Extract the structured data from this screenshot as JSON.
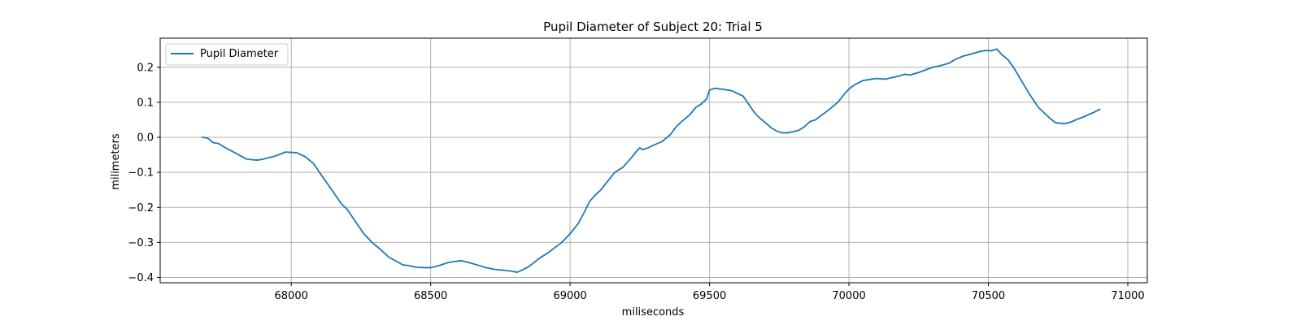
{
  "chart_data": {
    "type": "line",
    "title": "Pupil Diameter of Subject 20: Trial 5",
    "xlabel": "miliseconds",
    "ylabel": "milimeters",
    "xlim": [
      67530,
      71070
    ],
    "ylim": [
      -0.415,
      0.283
    ],
    "xticks": [
      68000,
      68500,
      69000,
      69500,
      70000,
      70500,
      71000
    ],
    "yticks": [
      -0.4,
      -0.3,
      -0.2,
      -0.1,
      0.0,
      0.1,
      0.2
    ],
    "ytick_labels": [
      "−0.4",
      "−0.3",
      "−0.2",
      "−0.1",
      "0.0",
      "0.1",
      "0.2"
    ],
    "grid": true,
    "legend_position": "top-left",
    "colors": {
      "series": "#1f77b4",
      "grid": "#b0b0b0"
    },
    "series": [
      {
        "name": "Pupil Diameter",
        "x": [
          67680,
          67700,
          67720,
          67740,
          67760,
          67800,
          67840,
          67860,
          67880,
          67900,
          67920,
          67940,
          67960,
          67980,
          68000,
          68020,
          68050,
          68080,
          68110,
          68150,
          68180,
          68200,
          68230,
          68260,
          68290,
          68320,
          68350,
          68380,
          68400,
          68420,
          68450,
          68480,
          68500,
          68530,
          68560,
          68580,
          68610,
          68640,
          68670,
          68700,
          68730,
          68760,
          68790,
          68810,
          68830,
          68850,
          68870,
          68890,
          68920,
          68950,
          68970,
          69000,
          69030,
          69050,
          69070,
          69090,
          69110,
          69130,
          69160,
          69190,
          69220,
          69240,
          69250,
          69260,
          69280,
          69300,
          69330,
          69360,
          69380,
          69400,
          69430,
          69450,
          69470,
          69490,
          69500,
          69520,
          69550,
          69580,
          69600,
          69620,
          69640,
          69660,
          69680,
          69700,
          69720,
          69740,
          69760,
          69780,
          69800,
          69820,
          69840,
          69860,
          69880,
          69900,
          69930,
          69960,
          69980,
          70000,
          70020,
          70050,
          70080,
          70100,
          70130,
          70150,
          70180,
          70200,
          70220,
          70250,
          70280,
          70300,
          70330,
          70360,
          70380,
          70410,
          70440,
          70470,
          70490,
          70510,
          70530,
          70550,
          70570,
          70590,
          70620,
          70650,
          70680,
          70700,
          70720,
          70740,
          70760,
          70780,
          70800,
          70820,
          70840,
          70860,
          70880,
          70900
        ],
        "y": [
          0.0,
          -0.002,
          -0.015,
          -0.018,
          -0.028,
          -0.045,
          -0.062,
          -0.064,
          -0.065,
          -0.062,
          -0.058,
          -0.054,
          -0.048,
          -0.042,
          -0.043,
          -0.044,
          -0.055,
          -0.075,
          -0.11,
          -0.155,
          -0.19,
          -0.205,
          -0.24,
          -0.275,
          -0.3,
          -0.32,
          -0.342,
          -0.355,
          -0.364,
          -0.366,
          -0.371,
          -0.372,
          -0.372,
          -0.366,
          -0.358,
          -0.355,
          -0.352,
          -0.358,
          -0.365,
          -0.372,
          -0.377,
          -0.379,
          -0.382,
          -0.385,
          -0.378,
          -0.37,
          -0.358,
          -0.345,
          -0.33,
          -0.312,
          -0.3,
          -0.275,
          -0.245,
          -0.215,
          -0.183,
          -0.165,
          -0.15,
          -0.13,
          -0.1,
          -0.085,
          -0.058,
          -0.038,
          -0.03,
          -0.035,
          -0.03,
          -0.022,
          -0.012,
          0.008,
          0.03,
          0.045,
          0.065,
          0.085,
          0.095,
          0.11,
          0.135,
          0.14,
          0.137,
          0.133,
          0.125,
          0.118,
          0.095,
          0.072,
          0.055,
          0.042,
          0.028,
          0.018,
          0.013,
          0.013,
          0.016,
          0.02,
          0.03,
          0.045,
          0.05,
          0.062,
          0.08,
          0.1,
          0.12,
          0.138,
          0.15,
          0.162,
          0.166,
          0.168,
          0.166,
          0.17,
          0.175,
          0.18,
          0.178,
          0.185,
          0.194,
          0.2,
          0.205,
          0.212,
          0.222,
          0.232,
          0.238,
          0.245,
          0.248,
          0.247,
          0.252,
          0.235,
          0.222,
          0.2,
          0.16,
          0.12,
          0.085,
          0.07,
          0.055,
          0.042,
          0.04,
          0.04,
          0.045,
          0.052,
          0.058,
          0.065,
          0.072,
          0.08
        ]
      }
    ]
  }
}
